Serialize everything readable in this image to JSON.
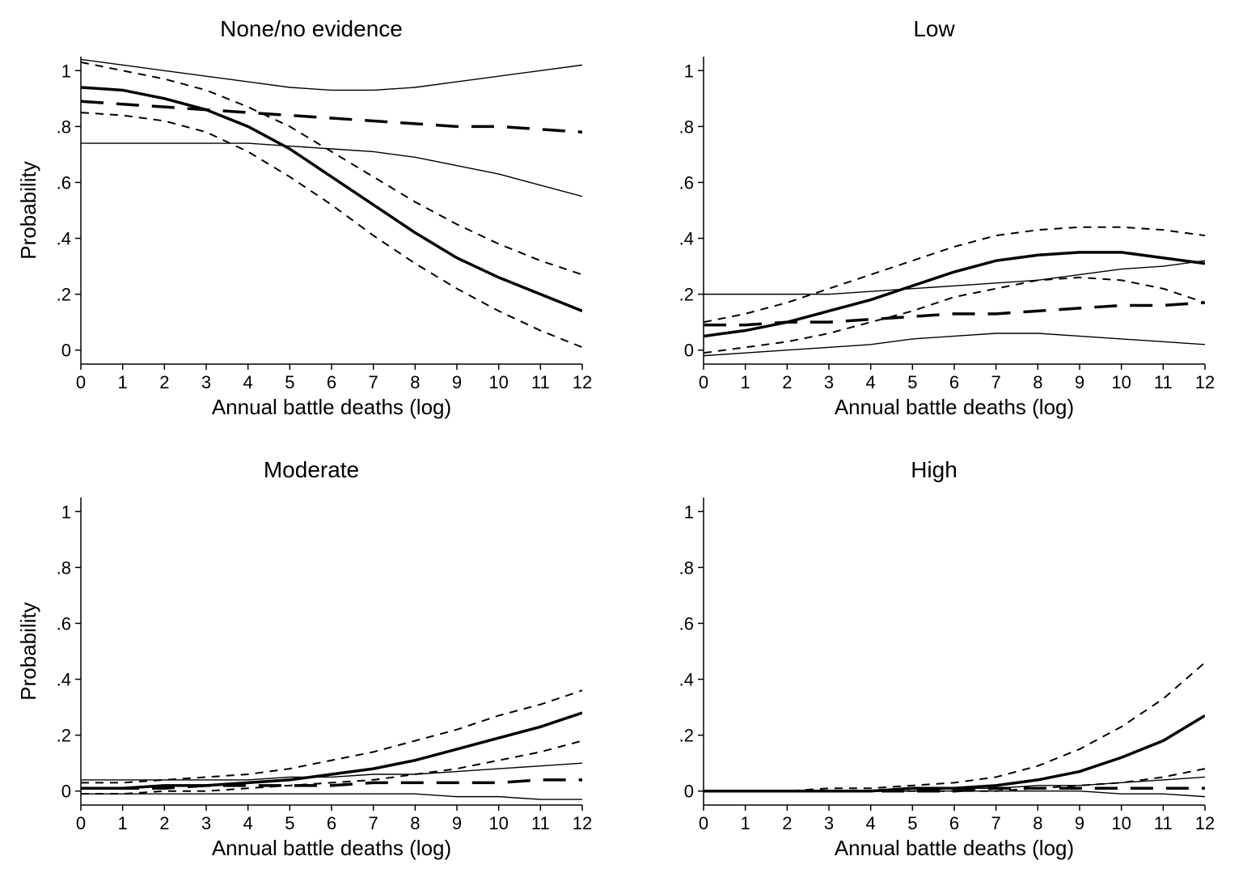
{
  "global": {
    "xlabel": "Annual battle deaths (log)",
    "ylabel": "Probability",
    "xlim": [
      0,
      12
    ],
    "ylim": [
      -0.05,
      1.05
    ],
    "xticks": [
      0,
      1,
      2,
      3,
      4,
      5,
      6,
      7,
      8,
      9,
      10,
      11,
      12
    ],
    "yticks": [
      0,
      0.2,
      0.4,
      0.6,
      0.8,
      1
    ],
    "yticklabels": [
      "0",
      ".2",
      ".4",
      ".6",
      ".8",
      "1"
    ],
    "background_color": "#ffffff",
    "axis_color": "#000000",
    "title_fontsize": 28,
    "tick_fontsize": 22,
    "label_fontsize": 26,
    "line_colors": "#000000",
    "thick_solid_width": 3.5,
    "thin_solid_width": 1.4,
    "short_dash_width": 2.0,
    "long_dash_width": 3.5,
    "short_dash_pattern": "10 8",
    "long_dash_pattern": "28 16"
  },
  "panels": [
    {
      "key": "none",
      "title": "None/no evidence",
      "series": {
        "thick_solid": [
          [
            0,
            0.94
          ],
          [
            1,
            0.93
          ],
          [
            2,
            0.9
          ],
          [
            3,
            0.86
          ],
          [
            4,
            0.8
          ],
          [
            5,
            0.72
          ],
          [
            6,
            0.62
          ],
          [
            7,
            0.52
          ],
          [
            8,
            0.42
          ],
          [
            9,
            0.33
          ],
          [
            10,
            0.26
          ],
          [
            11,
            0.2
          ],
          [
            12,
            0.14
          ]
        ],
        "short_dash_upper": [
          [
            0,
            1.03
          ],
          [
            1,
            1.0
          ],
          [
            2,
            0.97
          ],
          [
            3,
            0.93
          ],
          [
            4,
            0.87
          ],
          [
            5,
            0.8
          ],
          [
            6,
            0.71
          ],
          [
            7,
            0.62
          ],
          [
            8,
            0.53
          ],
          [
            9,
            0.45
          ],
          [
            10,
            0.38
          ],
          [
            11,
            0.32
          ],
          [
            12,
            0.27
          ]
        ],
        "short_dash_lower": [
          [
            0,
            0.85
          ],
          [
            1,
            0.84
          ],
          [
            2,
            0.82
          ],
          [
            3,
            0.78
          ],
          [
            4,
            0.71
          ],
          [
            5,
            0.62
          ],
          [
            6,
            0.52
          ],
          [
            7,
            0.41
          ],
          [
            8,
            0.31
          ],
          [
            9,
            0.22
          ],
          [
            10,
            0.14
          ],
          [
            11,
            0.07
          ],
          [
            12,
            0.01
          ]
        ],
        "long_dash": [
          [
            0,
            0.89
          ],
          [
            1,
            0.88
          ],
          [
            2,
            0.87
          ],
          [
            3,
            0.86
          ],
          [
            4,
            0.85
          ],
          [
            5,
            0.84
          ],
          [
            6,
            0.83
          ],
          [
            7,
            0.82
          ],
          [
            8,
            0.81
          ],
          [
            9,
            0.8
          ],
          [
            10,
            0.8
          ],
          [
            11,
            0.79
          ],
          [
            12,
            0.78
          ]
        ],
        "thin_solid_upper": [
          [
            0,
            1.04
          ],
          [
            1,
            1.02
          ],
          [
            2,
            1.0
          ],
          [
            3,
            0.98
          ],
          [
            4,
            0.96
          ],
          [
            5,
            0.94
          ],
          [
            6,
            0.93
          ],
          [
            7,
            0.93
          ],
          [
            8,
            0.94
          ],
          [
            9,
            0.96
          ],
          [
            10,
            0.98
          ],
          [
            11,
            1.0
          ],
          [
            12,
            1.02
          ]
        ],
        "thin_solid_lower": [
          [
            0,
            0.74
          ],
          [
            1,
            0.74
          ],
          [
            2,
            0.74
          ],
          [
            3,
            0.74
          ],
          [
            4,
            0.74
          ],
          [
            5,
            0.73
          ],
          [
            6,
            0.72
          ],
          [
            7,
            0.71
          ],
          [
            8,
            0.69
          ],
          [
            9,
            0.66
          ],
          [
            10,
            0.63
          ],
          [
            11,
            0.59
          ],
          [
            12,
            0.55
          ]
        ]
      }
    },
    {
      "key": "low",
      "title": "Low",
      "series": {
        "thick_solid": [
          [
            0,
            0.05
          ],
          [
            1,
            0.07
          ],
          [
            2,
            0.1
          ],
          [
            3,
            0.14
          ],
          [
            4,
            0.18
          ],
          [
            5,
            0.23
          ],
          [
            6,
            0.28
          ],
          [
            7,
            0.32
          ],
          [
            8,
            0.34
          ],
          [
            9,
            0.35
          ],
          [
            10,
            0.35
          ],
          [
            11,
            0.33
          ],
          [
            12,
            0.31
          ]
        ],
        "short_dash_upper": [
          [
            0,
            0.1
          ],
          [
            1,
            0.13
          ],
          [
            2,
            0.17
          ],
          [
            3,
            0.22
          ],
          [
            4,
            0.27
          ],
          [
            5,
            0.32
          ],
          [
            6,
            0.37
          ],
          [
            7,
            0.41
          ],
          [
            8,
            0.43
          ],
          [
            9,
            0.44
          ],
          [
            10,
            0.44
          ],
          [
            11,
            0.43
          ],
          [
            12,
            0.41
          ]
        ],
        "short_dash_lower": [
          [
            0,
            -0.01
          ],
          [
            1,
            0.01
          ],
          [
            2,
            0.03
          ],
          [
            3,
            0.06
          ],
          [
            4,
            0.1
          ],
          [
            5,
            0.14
          ],
          [
            6,
            0.19
          ],
          [
            7,
            0.22
          ],
          [
            8,
            0.25
          ],
          [
            9,
            0.26
          ],
          [
            10,
            0.25
          ],
          [
            11,
            0.22
          ],
          [
            12,
            0.17
          ]
        ],
        "long_dash": [
          [
            0,
            0.09
          ],
          [
            1,
            0.09
          ],
          [
            2,
            0.1
          ],
          [
            3,
            0.1
          ],
          [
            4,
            0.11
          ],
          [
            5,
            0.12
          ],
          [
            6,
            0.13
          ],
          [
            7,
            0.13
          ],
          [
            8,
            0.14
          ],
          [
            9,
            0.15
          ],
          [
            10,
            0.16
          ],
          [
            11,
            0.16
          ],
          [
            12,
            0.17
          ]
        ],
        "thin_solid_upper": [
          [
            0,
            0.2
          ],
          [
            1,
            0.2
          ],
          [
            2,
            0.2
          ],
          [
            3,
            0.2
          ],
          [
            4,
            0.21
          ],
          [
            5,
            0.22
          ],
          [
            6,
            0.23
          ],
          [
            7,
            0.24
          ],
          [
            8,
            0.25
          ],
          [
            9,
            0.27
          ],
          [
            10,
            0.29
          ],
          [
            11,
            0.3
          ],
          [
            12,
            0.32
          ]
        ],
        "thin_solid_lower": [
          [
            0,
            -0.02
          ],
          [
            1,
            -0.01
          ],
          [
            2,
            0.0
          ],
          [
            3,
            0.01
          ],
          [
            4,
            0.02
          ],
          [
            5,
            0.04
          ],
          [
            6,
            0.05
          ],
          [
            7,
            0.06
          ],
          [
            8,
            0.06
          ],
          [
            9,
            0.05
          ],
          [
            10,
            0.04
          ],
          [
            11,
            0.03
          ],
          [
            12,
            0.02
          ]
        ]
      }
    },
    {
      "key": "moderate",
      "title": "Moderate",
      "series": {
        "thick_solid": [
          [
            0,
            0.01
          ],
          [
            1,
            0.01
          ],
          [
            2,
            0.02
          ],
          [
            3,
            0.02
          ],
          [
            4,
            0.03
          ],
          [
            5,
            0.04
          ],
          [
            6,
            0.06
          ],
          [
            7,
            0.08
          ],
          [
            8,
            0.11
          ],
          [
            9,
            0.15
          ],
          [
            10,
            0.19
          ],
          [
            11,
            0.23
          ],
          [
            12,
            0.28
          ]
        ],
        "short_dash_upper": [
          [
            0,
            0.03
          ],
          [
            1,
            0.03
          ],
          [
            2,
            0.04
          ],
          [
            3,
            0.05
          ],
          [
            4,
            0.06
          ],
          [
            5,
            0.08
          ],
          [
            6,
            0.11
          ],
          [
            7,
            0.14
          ],
          [
            8,
            0.18
          ],
          [
            9,
            0.22
          ],
          [
            10,
            0.27
          ],
          [
            11,
            0.31
          ],
          [
            12,
            0.36
          ]
        ],
        "short_dash_lower": [
          [
            0,
            -0.01
          ],
          [
            1,
            -0.01
          ],
          [
            2,
            0.0
          ],
          [
            3,
            0.0
          ],
          [
            4,
            0.01
          ],
          [
            5,
            0.02
          ],
          [
            6,
            0.03
          ],
          [
            7,
            0.04
          ],
          [
            8,
            0.06
          ],
          [
            9,
            0.08
          ],
          [
            10,
            0.11
          ],
          [
            11,
            0.14
          ],
          [
            12,
            0.18
          ]
        ],
        "long_dash": [
          [
            0,
            0.01
          ],
          [
            1,
            0.01
          ],
          [
            2,
            0.01
          ],
          [
            3,
            0.02
          ],
          [
            4,
            0.02
          ],
          [
            5,
            0.02
          ],
          [
            6,
            0.02
          ],
          [
            7,
            0.03
          ],
          [
            8,
            0.03
          ],
          [
            9,
            0.03
          ],
          [
            10,
            0.03
          ],
          [
            11,
            0.04
          ],
          [
            12,
            0.04
          ]
        ],
        "thin_solid_upper": [
          [
            0,
            0.04
          ],
          [
            1,
            0.04
          ],
          [
            2,
            0.04
          ],
          [
            3,
            0.04
          ],
          [
            4,
            0.04
          ],
          [
            5,
            0.05
          ],
          [
            6,
            0.05
          ],
          [
            7,
            0.06
          ],
          [
            8,
            0.06
          ],
          [
            9,
            0.07
          ],
          [
            10,
            0.08
          ],
          [
            11,
            0.09
          ],
          [
            12,
            0.1
          ]
        ],
        "thin_solid_lower": [
          [
            0,
            -0.01
          ],
          [
            1,
            -0.01
          ],
          [
            2,
            -0.01
          ],
          [
            3,
            -0.01
          ],
          [
            4,
            -0.01
          ],
          [
            5,
            -0.01
          ],
          [
            6,
            -0.01
          ],
          [
            7,
            -0.01
          ],
          [
            8,
            -0.01
          ],
          [
            9,
            -0.02
          ],
          [
            10,
            -0.02
          ],
          [
            11,
            -0.03
          ],
          [
            12,
            -0.03
          ]
        ]
      }
    },
    {
      "key": "high",
      "title": "High",
      "series": {
        "thick_solid": [
          [
            0,
            0.0
          ],
          [
            1,
            0.0
          ],
          [
            2,
            0.0
          ],
          [
            3,
            0.0
          ],
          [
            4,
            0.0
          ],
          [
            5,
            0.01
          ],
          [
            6,
            0.01
          ],
          [
            7,
            0.02
          ],
          [
            8,
            0.04
          ],
          [
            9,
            0.07
          ],
          [
            10,
            0.12
          ],
          [
            11,
            0.18
          ],
          [
            12,
            0.27
          ]
        ],
        "short_dash_upper": [
          [
            0,
            0.0
          ],
          [
            1,
            0.0
          ],
          [
            2,
            0.0
          ],
          [
            3,
            0.01
          ],
          [
            4,
            0.01
          ],
          [
            5,
            0.02
          ],
          [
            6,
            0.03
          ],
          [
            7,
            0.05
          ],
          [
            8,
            0.09
          ],
          [
            9,
            0.15
          ],
          [
            10,
            0.23
          ],
          [
            11,
            0.33
          ],
          [
            12,
            0.46
          ]
        ],
        "short_dash_lower": [
          [
            0,
            0.0
          ],
          [
            1,
            0.0
          ],
          [
            2,
            0.0
          ],
          [
            3,
            0.0
          ],
          [
            4,
            0.0
          ],
          [
            5,
            0.0
          ],
          [
            6,
            0.0
          ],
          [
            7,
            0.0
          ],
          [
            8,
            0.01
          ],
          [
            9,
            0.02
          ],
          [
            10,
            0.03
          ],
          [
            11,
            0.05
          ],
          [
            12,
            0.08
          ]
        ],
        "long_dash": [
          [
            0,
            0.0
          ],
          [
            1,
            0.0
          ],
          [
            2,
            0.0
          ],
          [
            3,
            0.0
          ],
          [
            4,
            0.0
          ],
          [
            5,
            0.0
          ],
          [
            6,
            0.0
          ],
          [
            7,
            0.01
          ],
          [
            8,
            0.01
          ],
          [
            9,
            0.01
          ],
          [
            10,
            0.01
          ],
          [
            11,
            0.01
          ],
          [
            12,
            0.01
          ]
        ],
        "thin_solid_upper": [
          [
            0,
            0.0
          ],
          [
            1,
            0.0
          ],
          [
            2,
            0.0
          ],
          [
            3,
            0.0
          ],
          [
            4,
            0.0
          ],
          [
            5,
            0.0
          ],
          [
            6,
            0.01
          ],
          [
            7,
            0.01
          ],
          [
            8,
            0.02
          ],
          [
            9,
            0.02
          ],
          [
            10,
            0.03
          ],
          [
            11,
            0.04
          ],
          [
            12,
            0.05
          ]
        ],
        "thin_solid_lower": [
          [
            0,
            0.0
          ],
          [
            1,
            0.0
          ],
          [
            2,
            0.0
          ],
          [
            3,
            0.0
          ],
          [
            4,
            0.0
          ],
          [
            5,
            0.0
          ],
          [
            6,
            0.0
          ],
          [
            7,
            -0.0
          ],
          [
            8,
            -0.0
          ],
          [
            9,
            -0.0
          ],
          [
            10,
            -0.01
          ],
          [
            11,
            -0.01
          ],
          [
            12,
            -0.02
          ]
        ]
      }
    }
  ]
}
